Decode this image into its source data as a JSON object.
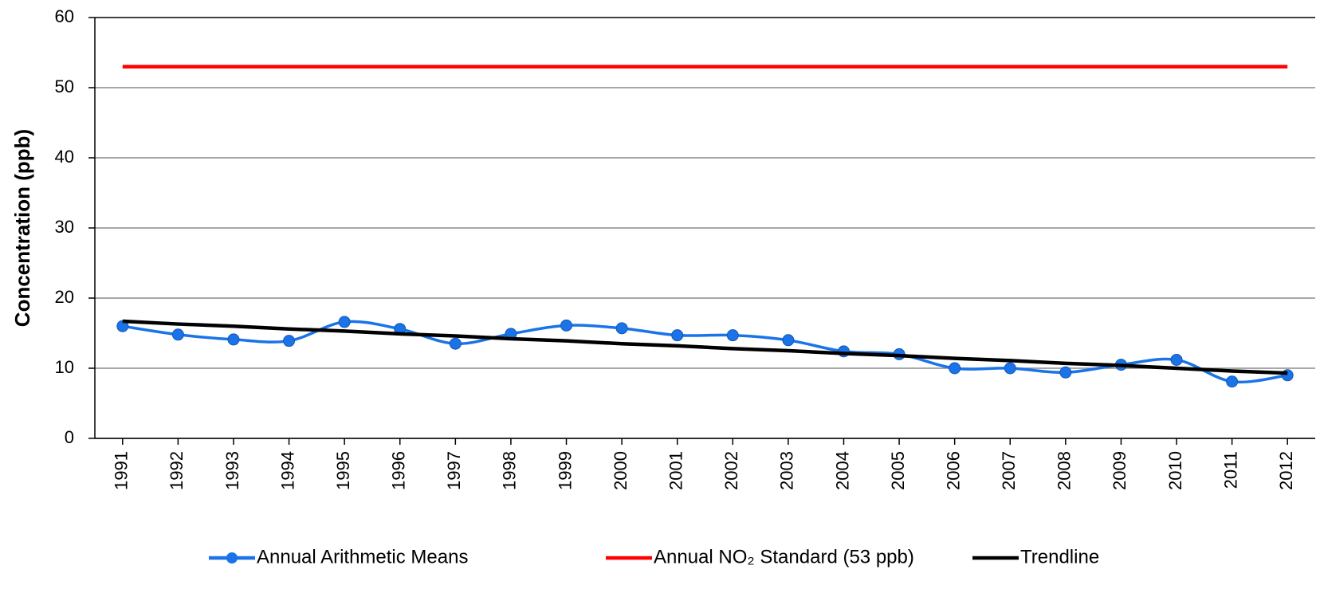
{
  "chart_data": {
    "type": "line",
    "y_label": "Concentration (ppb)",
    "categories": [
      "1991",
      "1992",
      "1993",
      "1994",
      "1995",
      "1996",
      "1997",
      "1998",
      "1999",
      "2000",
      "2001",
      "2002",
      "2003",
      "2004",
      "2005",
      "2006",
      "2007",
      "2008",
      "2009",
      "2010",
      "2011",
      "2012"
    ],
    "series": [
      {
        "name": "Annual Arithmetic Means",
        "color": "#1a73e8",
        "smooth": true,
        "markers": true,
        "values": [
          16.0,
          14.8,
          14.1,
          13.9,
          16.6,
          15.6,
          13.5,
          14.9,
          16.1,
          15.7,
          14.7,
          14.7,
          14.0,
          12.4,
          12.0,
          10.0,
          10.0,
          9.4,
          10.5,
          11.2,
          8.1,
          9.0
        ]
      },
      {
        "name": "Annual NO₂ Standard (53 ppb)",
        "color": "#ff0000",
        "smooth": false,
        "markers": false,
        "values": [
          53,
          53,
          53,
          53,
          53,
          53,
          53,
          53,
          53,
          53,
          53,
          53,
          53,
          53,
          53,
          53,
          53,
          53,
          53,
          53,
          53,
          53
        ]
      },
      {
        "name": "Trendline",
        "color": "#000000",
        "smooth": false,
        "markers": false,
        "values": [
          16.7,
          16.3,
          16.0,
          15.6,
          15.3,
          14.9,
          14.6,
          14.2,
          13.9,
          13.5,
          13.2,
          12.8,
          12.5,
          12.1,
          11.8,
          11.4,
          11.1,
          10.7,
          10.4,
          10.0,
          9.6,
          9.3
        ]
      }
    ],
    "ylim": [
      0,
      60
    ],
    "yticks": [
      0,
      10,
      20,
      30,
      40,
      50,
      60
    ],
    "grid": true,
    "legend": "bottom"
  }
}
